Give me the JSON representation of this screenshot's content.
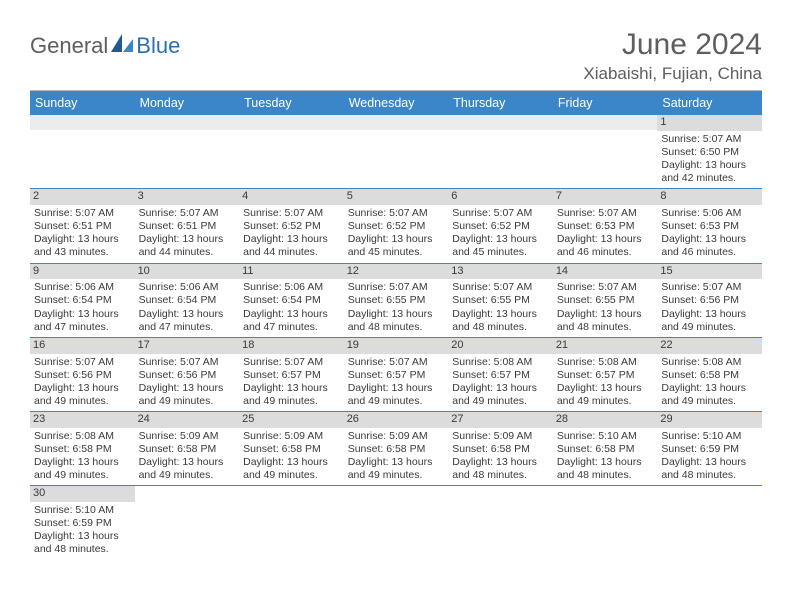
{
  "logo": {
    "part1": "General",
    "part2": "Blue"
  },
  "title": "June 2024",
  "location": "Xiabaishi, Fujian, China",
  "colors": {
    "header_bg": "#3a86c8",
    "header_text": "#ffffff",
    "day_strip": "#dcdcdc",
    "row_border": "#3a86c8",
    "text": "#3a3a3a",
    "title_text": "#5e5e5e",
    "logo_blue": "#2b6fb3"
  },
  "weekdays": [
    "Sunday",
    "Monday",
    "Tuesday",
    "Wednesday",
    "Thursday",
    "Friday",
    "Saturday"
  ],
  "grid": [
    [
      {
        "blank": true
      },
      {
        "blank": true
      },
      {
        "blank": true
      },
      {
        "blank": true
      },
      {
        "blank": true
      },
      {
        "blank": true
      },
      {
        "n": "1",
        "sr": "Sunrise: 5:07 AM",
        "ss": "Sunset: 6:50 PM",
        "d1": "Daylight: 13 hours",
        "d2": "and 42 minutes."
      }
    ],
    [
      {
        "n": "2",
        "sr": "Sunrise: 5:07 AM",
        "ss": "Sunset: 6:51 PM",
        "d1": "Daylight: 13 hours",
        "d2": "and 43 minutes."
      },
      {
        "n": "3",
        "sr": "Sunrise: 5:07 AM",
        "ss": "Sunset: 6:51 PM",
        "d1": "Daylight: 13 hours",
        "d2": "and 44 minutes."
      },
      {
        "n": "4",
        "sr": "Sunrise: 5:07 AM",
        "ss": "Sunset: 6:52 PM",
        "d1": "Daylight: 13 hours",
        "d2": "and 44 minutes."
      },
      {
        "n": "5",
        "sr": "Sunrise: 5:07 AM",
        "ss": "Sunset: 6:52 PM",
        "d1": "Daylight: 13 hours",
        "d2": "and 45 minutes."
      },
      {
        "n": "6",
        "sr": "Sunrise: 5:07 AM",
        "ss": "Sunset: 6:52 PM",
        "d1": "Daylight: 13 hours",
        "d2": "and 45 minutes."
      },
      {
        "n": "7",
        "sr": "Sunrise: 5:07 AM",
        "ss": "Sunset: 6:53 PM",
        "d1": "Daylight: 13 hours",
        "d2": "and 46 minutes."
      },
      {
        "n": "8",
        "sr": "Sunrise: 5:06 AM",
        "ss": "Sunset: 6:53 PM",
        "d1": "Daylight: 13 hours",
        "d2": "and 46 minutes."
      }
    ],
    [
      {
        "n": "9",
        "sr": "Sunrise: 5:06 AM",
        "ss": "Sunset: 6:54 PM",
        "d1": "Daylight: 13 hours",
        "d2": "and 47 minutes."
      },
      {
        "n": "10",
        "sr": "Sunrise: 5:06 AM",
        "ss": "Sunset: 6:54 PM",
        "d1": "Daylight: 13 hours",
        "d2": "and 47 minutes."
      },
      {
        "n": "11",
        "sr": "Sunrise: 5:06 AM",
        "ss": "Sunset: 6:54 PM",
        "d1": "Daylight: 13 hours",
        "d2": "and 47 minutes."
      },
      {
        "n": "12",
        "sr": "Sunrise: 5:07 AM",
        "ss": "Sunset: 6:55 PM",
        "d1": "Daylight: 13 hours",
        "d2": "and 48 minutes."
      },
      {
        "n": "13",
        "sr": "Sunrise: 5:07 AM",
        "ss": "Sunset: 6:55 PM",
        "d1": "Daylight: 13 hours",
        "d2": "and 48 minutes."
      },
      {
        "n": "14",
        "sr": "Sunrise: 5:07 AM",
        "ss": "Sunset: 6:55 PM",
        "d1": "Daylight: 13 hours",
        "d2": "and 48 minutes."
      },
      {
        "n": "15",
        "sr": "Sunrise: 5:07 AM",
        "ss": "Sunset: 6:56 PM",
        "d1": "Daylight: 13 hours",
        "d2": "and 49 minutes."
      }
    ],
    [
      {
        "n": "16",
        "sr": "Sunrise: 5:07 AM",
        "ss": "Sunset: 6:56 PM",
        "d1": "Daylight: 13 hours",
        "d2": "and 49 minutes."
      },
      {
        "n": "17",
        "sr": "Sunrise: 5:07 AM",
        "ss": "Sunset: 6:56 PM",
        "d1": "Daylight: 13 hours",
        "d2": "and 49 minutes."
      },
      {
        "n": "18",
        "sr": "Sunrise: 5:07 AM",
        "ss": "Sunset: 6:57 PM",
        "d1": "Daylight: 13 hours",
        "d2": "and 49 minutes."
      },
      {
        "n": "19",
        "sr": "Sunrise: 5:07 AM",
        "ss": "Sunset: 6:57 PM",
        "d1": "Daylight: 13 hours",
        "d2": "and 49 minutes."
      },
      {
        "n": "20",
        "sr": "Sunrise: 5:08 AM",
        "ss": "Sunset: 6:57 PM",
        "d1": "Daylight: 13 hours",
        "d2": "and 49 minutes."
      },
      {
        "n": "21",
        "sr": "Sunrise: 5:08 AM",
        "ss": "Sunset: 6:57 PM",
        "d1": "Daylight: 13 hours",
        "d2": "and 49 minutes."
      },
      {
        "n": "22",
        "sr": "Sunrise: 5:08 AM",
        "ss": "Sunset: 6:58 PM",
        "d1": "Daylight: 13 hours",
        "d2": "and 49 minutes."
      }
    ],
    [
      {
        "n": "23",
        "sr": "Sunrise: 5:08 AM",
        "ss": "Sunset: 6:58 PM",
        "d1": "Daylight: 13 hours",
        "d2": "and 49 minutes."
      },
      {
        "n": "24",
        "sr": "Sunrise: 5:09 AM",
        "ss": "Sunset: 6:58 PM",
        "d1": "Daylight: 13 hours",
        "d2": "and 49 minutes."
      },
      {
        "n": "25",
        "sr": "Sunrise: 5:09 AM",
        "ss": "Sunset: 6:58 PM",
        "d1": "Daylight: 13 hours",
        "d2": "and 49 minutes."
      },
      {
        "n": "26",
        "sr": "Sunrise: 5:09 AM",
        "ss": "Sunset: 6:58 PM",
        "d1": "Daylight: 13 hours",
        "d2": "and 49 minutes."
      },
      {
        "n": "27",
        "sr": "Sunrise: 5:09 AM",
        "ss": "Sunset: 6:58 PM",
        "d1": "Daylight: 13 hours",
        "d2": "and 48 minutes."
      },
      {
        "n": "28",
        "sr": "Sunrise: 5:10 AM",
        "ss": "Sunset: 6:58 PM",
        "d1": "Daylight: 13 hours",
        "d2": "and 48 minutes."
      },
      {
        "n": "29",
        "sr": "Sunrise: 5:10 AM",
        "ss": "Sunset: 6:59 PM",
        "d1": "Daylight: 13 hours",
        "d2": "and 48 minutes."
      }
    ],
    [
      {
        "n": "30",
        "sr": "Sunrise: 5:10 AM",
        "ss": "Sunset: 6:59 PM",
        "d1": "Daylight: 13 hours",
        "d2": "and 48 minutes."
      },
      {
        "blank": true
      },
      {
        "blank": true
      },
      {
        "blank": true
      },
      {
        "blank": true
      },
      {
        "blank": true
      },
      {
        "blank": true
      }
    ]
  ]
}
